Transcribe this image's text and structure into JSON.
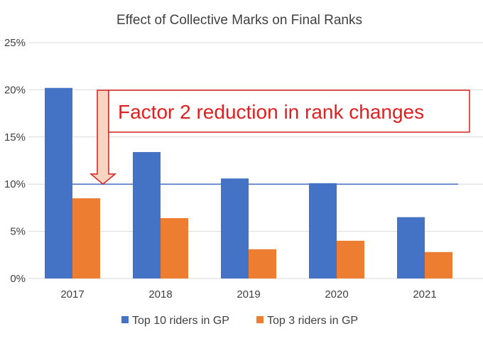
{
  "chart_data": {
    "type": "bar",
    "title": "Effect of Collective Marks on Final Ranks",
    "categories": [
      "2017",
      "2018",
      "2019",
      "2020",
      "2021"
    ],
    "series": [
      {
        "name": "Top 10 riders in GP",
        "values": [
          20.2,
          13.4,
          10.6,
          10.1,
          6.5
        ],
        "color": "#4472c4"
      },
      {
        "name": "Top 3 riders in GP",
        "values": [
          8.5,
          6.4,
          3.1,
          4.0,
          2.8
        ],
        "color": "#ed7d31"
      }
    ],
    "y_ticks": [
      "0%",
      "5%",
      "10%",
      "15%",
      "20%",
      "25%"
    ],
    "ylim": [
      0,
      25
    ],
    "reference_line": {
      "value": 10,
      "color": "#4472c4"
    },
    "annotation": {
      "text": "Factor 2 reduction in rank changes",
      "text_color": "#e02020",
      "border_color": "#d42020",
      "arrow_fill": "#f8d5c0",
      "arrow_stroke": "#d42020"
    },
    "grid": true,
    "legend_position": "bottom"
  }
}
